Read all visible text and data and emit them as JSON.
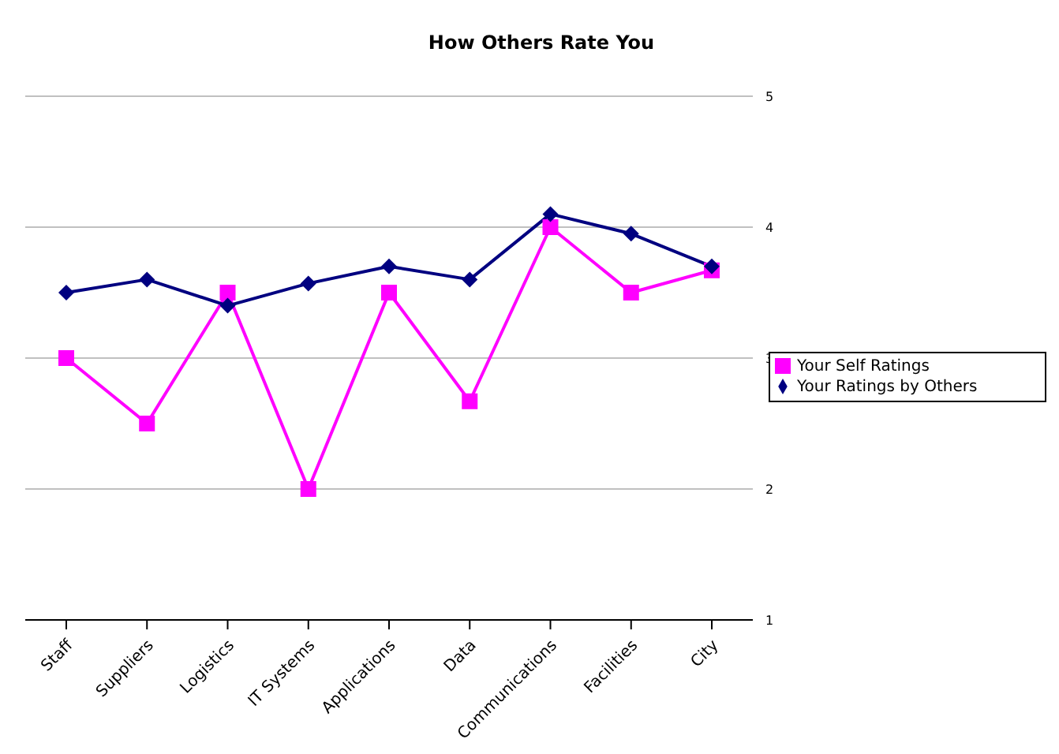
{
  "chart_data": {
    "type": "line",
    "title": "How Others Rate You",
    "categories": [
      "Staff",
      "Suppliers",
      "Logistics",
      "IT Systems",
      "Applications",
      "Data",
      "Communications",
      "Facilities",
      "City"
    ],
    "series": [
      {
        "name": "Your Self Ratings",
        "color": "#ff00ff",
        "marker": "square",
        "values": [
          3.0,
          2.5,
          3.5,
          2.0,
          3.5,
          2.67,
          4.0,
          3.5,
          3.67
        ]
      },
      {
        "name": "Your Ratings by Others",
        "color": "#000080",
        "marker": "diamond",
        "values": [
          3.5,
          3.6,
          3.4,
          3.57,
          3.7,
          3.6,
          4.1,
          3.95,
          3.7
        ]
      }
    ],
    "ylim": [
      1,
      5
    ],
    "yticks": [
      1,
      2,
      3,
      4,
      5
    ],
    "grid": "y",
    "legend": "right",
    "line_style": "solid"
  }
}
